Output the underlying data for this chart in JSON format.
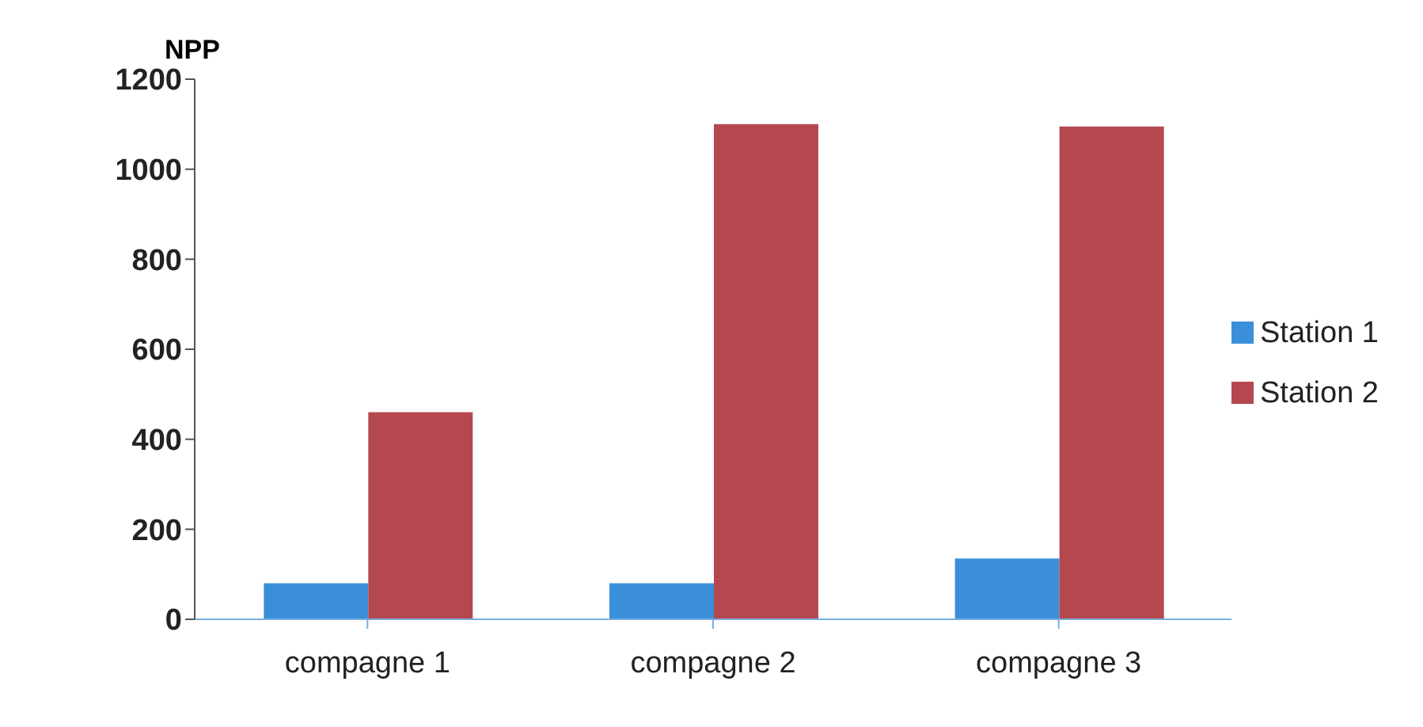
{
  "chart_data": {
    "type": "bar",
    "ylabel": "NPP",
    "categories": [
      "compagne 1",
      "compagne 2",
      "compagne 3"
    ],
    "series": [
      {
        "name": "Station 1",
        "color": "#3a8fd8",
        "values": [
          80,
          80,
          135
        ]
      },
      {
        "name": "Station 2",
        "color": "#b5474f",
        "values": [
          460,
          1100,
          1095
        ]
      }
    ],
    "ylim": [
      0,
      1200
    ],
    "yticks": [
      0,
      200,
      400,
      600,
      800,
      1000,
      1200
    ],
    "grid": false,
    "legend": "right"
  }
}
